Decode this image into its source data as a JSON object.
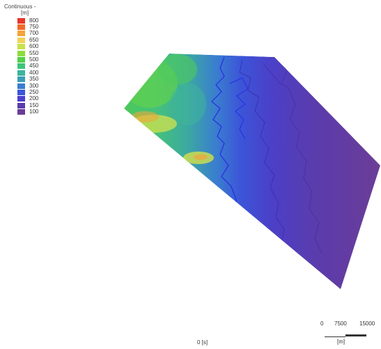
{
  "legend": {
    "title": "Continuous -",
    "unit": "[m]",
    "items": [
      {
        "label": "800",
        "color": "#e8372a"
      },
      {
        "label": "750",
        "color": "#f06a2c"
      },
      {
        "label": "700",
        "color": "#f5a23a"
      },
      {
        "label": "650",
        "color": "#f0d35c"
      },
      {
        "label": "600",
        "color": "#c8e24b"
      },
      {
        "label": "550",
        "color": "#8edb3e"
      },
      {
        "label": "500",
        "color": "#55d04a"
      },
      {
        "label": "450",
        "color": "#3fc47c"
      },
      {
        "label": "400",
        "color": "#3ab59d"
      },
      {
        "label": "350",
        "color": "#3a9fb3"
      },
      {
        "label": "300",
        "color": "#3a7ed0"
      },
      {
        "label": "250",
        "color": "#3a55d9"
      },
      {
        "label": "200",
        "color": "#4a3fcf"
      },
      {
        "label": "150",
        "color": "#5a3caf"
      },
      {
        "label": "100",
        "color": "#6a3d98"
      }
    ]
  },
  "scalebar": {
    "ticks": [
      "0",
      "7500",
      "15000"
    ],
    "unit": "[m]"
  },
  "time_label": "0 [s]"
}
